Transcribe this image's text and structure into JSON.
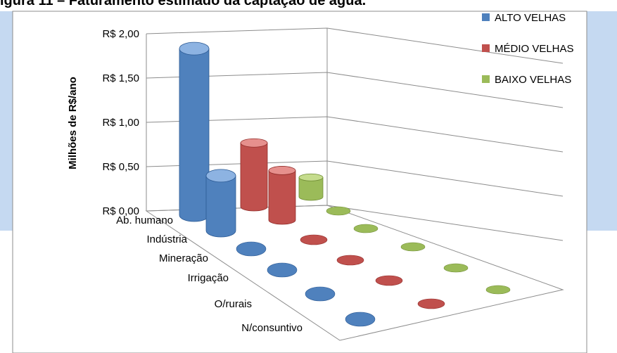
{
  "figure_title": "igura 11 – Faturamento estimado da captação de água.",
  "colors": {
    "band": "#c5d9f1",
    "series": [
      "#4f81bd",
      "#c0504d",
      "#9bbb59"
    ],
    "series_dark": [
      "#2c5a94",
      "#922d2a",
      "#6f8c34"
    ],
    "series_light": [
      "#8db3e2",
      "#e6908d",
      "#c5dc8d"
    ]
  },
  "chart_data": {
    "type": "bar",
    "style": "3d-cylinder",
    "title": "",
    "ylabel": "Milhões de R$/ano",
    "ylim": [
      0,
      2
    ],
    "yticks": [
      "R$ 0,00",
      "R$ 0,50",
      "R$ 1,00",
      "R$ 1,50",
      "R$ 2,00"
    ],
    "grid": true,
    "legend_position": "top-right",
    "categories": [
      "Ab. humano",
      "Indústria",
      "Mineração",
      "Irrigação",
      "O/rurais",
      "N/consuntivo"
    ],
    "series": [
      {
        "name": "ALTO VELHAS",
        "values": [
          1.88,
          0.62,
          0.0,
          0.0,
          0.0,
          0.0
        ]
      },
      {
        "name": "MÉDIO VELHAS",
        "values": [
          0.72,
          0.56,
          0.0,
          0.0,
          0.0,
          0.0
        ]
      },
      {
        "name": "BAIXO VELHAS",
        "values": [
          0.22,
          0.0,
          0.0,
          0.0,
          0.0,
          0.0
        ]
      }
    ]
  }
}
